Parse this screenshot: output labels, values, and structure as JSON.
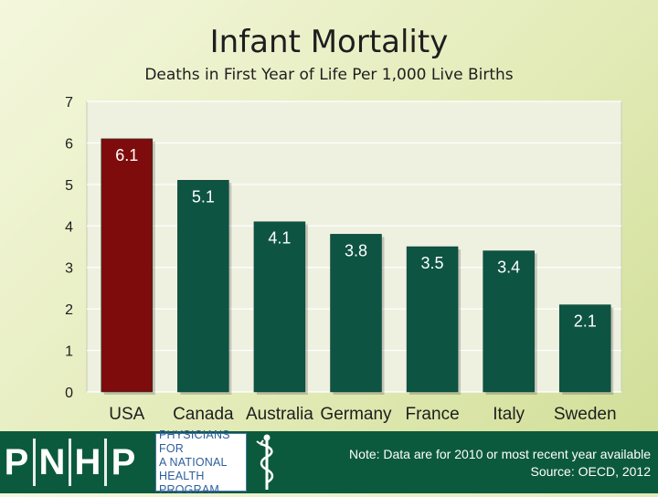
{
  "chart_data": {
    "type": "bar",
    "title": "Infant Mortality",
    "subtitle": "Deaths in First Year of Life Per 1,000 Live Births",
    "categories": [
      "USA",
      "Canada",
      "Australia",
      "Germany",
      "France",
      "Italy",
      "Sweden"
    ],
    "values": [
      6.1,
      5.1,
      4.1,
      3.8,
      3.5,
      3.4,
      2.1
    ],
    "value_labels": [
      "6.1",
      "5.1",
      "4.1",
      "3.8",
      "3.5",
      "3.4",
      "2.1"
    ],
    "y_ticks": [
      "0",
      "1",
      "2",
      "3",
      "4",
      "5",
      "6",
      "7"
    ],
    "ylim": [
      0,
      7
    ],
    "xlabel": "",
    "ylabel": "",
    "grid": true,
    "colors": {
      "highlight": "#7e0c0c",
      "default": "#0d5443",
      "plot_bg": "#eef1e0",
      "grid": "#ffffff"
    }
  },
  "footer": {
    "logo_letters": [
      "P",
      "N",
      "H",
      "P"
    ],
    "org_name_lines": [
      "PHYSICIANS FOR",
      "A NATIONAL",
      "HEALTH",
      "PROGRAM"
    ],
    "note": "Note: Data are for 2010 or most recent year available",
    "source": "Source: OECD, 2012",
    "logo_icon": "caduceus-icon"
  }
}
